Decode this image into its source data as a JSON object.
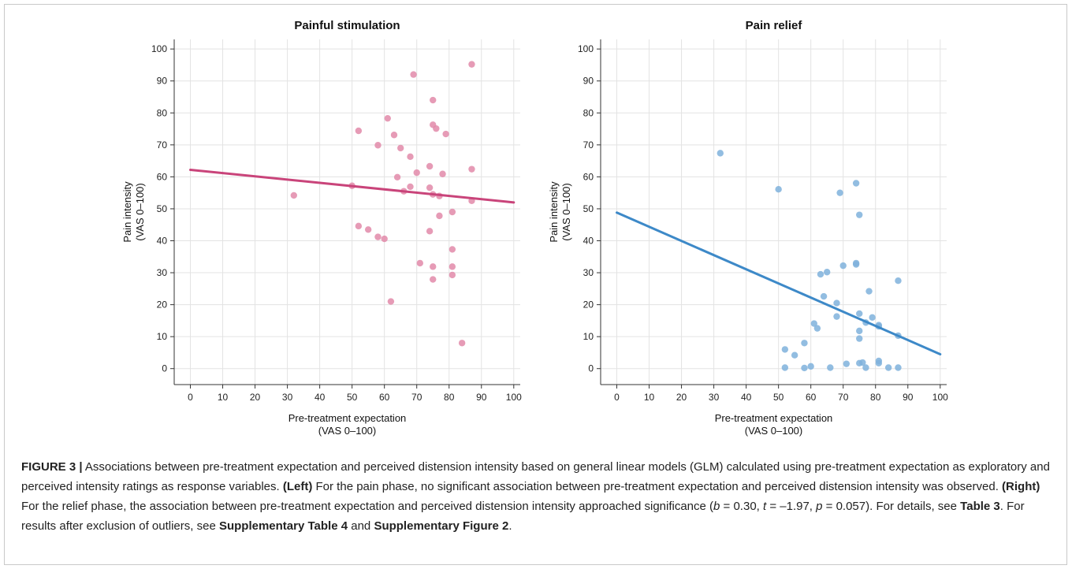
{
  "colors": {
    "pain": "#c9447a",
    "pain_points": "#e28aa9",
    "relief": "#3d89c8",
    "relief_points": "#7fb1dc"
  },
  "chart_data": [
    {
      "type": "scatter",
      "title": "Painful stimulation",
      "xlabel": [
        "Pre-treatment expectation",
        "(VAS 0–100)"
      ],
      "ylabel": [
        "Pain intensity",
        "(VAS 0–100)"
      ],
      "xlim": [
        -5,
        102
      ],
      "ylim": [
        -5,
        103
      ],
      "xticks": [
        0,
        10,
        20,
        30,
        40,
        50,
        60,
        70,
        80,
        90,
        100
      ],
      "yticks": [
        0,
        10,
        20,
        30,
        40,
        50,
        60,
        70,
        80,
        90,
        100
      ],
      "grid": true,
      "fit_line": {
        "x": [
          0,
          100
        ],
        "y": [
          62.2,
          52
        ]
      },
      "points": [
        [
          69,
          92
        ],
        [
          87,
          95.2
        ],
        [
          61,
          78.3
        ],
        [
          75,
          84
        ],
        [
          75,
          76.3
        ],
        [
          76,
          75.1
        ],
        [
          52,
          74.4
        ],
        [
          63,
          73.1
        ],
        [
          79,
          73.4
        ],
        [
          58,
          69.9
        ],
        [
          65,
          69
        ],
        [
          68,
          66.3
        ],
        [
          74,
          63.3
        ],
        [
          87,
          62.4
        ],
        [
          70,
          61.3
        ],
        [
          78,
          60.9
        ],
        [
          64,
          59.9
        ],
        [
          50,
          57.2
        ],
        [
          68,
          56.9
        ],
        [
          74,
          56.6
        ],
        [
          66,
          55.5
        ],
        [
          75,
          54.5
        ],
        [
          77,
          54
        ],
        [
          32,
          54.2
        ],
        [
          87,
          52.5
        ],
        [
          81,
          49
        ],
        [
          77,
          47.8
        ],
        [
          52,
          44.6
        ],
        [
          55,
          43.5
        ],
        [
          74,
          43
        ],
        [
          58,
          41.2
        ],
        [
          60,
          40.6
        ],
        [
          81,
          37.3
        ],
        [
          71,
          33
        ],
        [
          75,
          31.9
        ],
        [
          81,
          31.9
        ],
        [
          81,
          29.3
        ],
        [
          75,
          27.9
        ],
        [
          62,
          21
        ],
        [
          84,
          8
        ]
      ]
    },
    {
      "type": "scatter",
      "title": "Pain relief",
      "xlabel": [
        "Pre-treatment expectation",
        "(VAS 0–100)"
      ],
      "ylabel": [
        "Pain intensity",
        "(VAS 0–100)"
      ],
      "xlim": [
        -5,
        102
      ],
      "ylim": [
        -5,
        103
      ],
      "xticks": [
        0,
        10,
        20,
        30,
        40,
        50,
        60,
        70,
        80,
        90,
        100
      ],
      "yticks": [
        0,
        10,
        20,
        30,
        40,
        50,
        60,
        70,
        80,
        90,
        100
      ],
      "grid": true,
      "fit_line": {
        "x": [
          0,
          100
        ],
        "y": [
          48.8,
          4.5
        ]
      },
      "points": [
        [
          32,
          67.4
        ],
        [
          50,
          56.1
        ],
        [
          69,
          55
        ],
        [
          74,
          58
        ],
        [
          75,
          48.1
        ],
        [
          74,
          33
        ],
        [
          74,
          32.6
        ],
        [
          70,
          32.2
        ],
        [
          65,
          30.2
        ],
        [
          63,
          29.5
        ],
        [
          87,
          27.5
        ],
        [
          78,
          24.2
        ],
        [
          64,
          22.6
        ],
        [
          68,
          20.5
        ],
        [
          75,
          17.2
        ],
        [
          79,
          16
        ],
        [
          68,
          16.3
        ],
        [
          77,
          14.4
        ],
        [
          61,
          14.1
        ],
        [
          81,
          13.6
        ],
        [
          81,
          13.2
        ],
        [
          62,
          12.6
        ],
        [
          75,
          11.8
        ],
        [
          87,
          10.3
        ],
        [
          75,
          9.4
        ],
        [
          58,
          8
        ],
        [
          52,
          6
        ],
        [
          55,
          4.2
        ],
        [
          81,
          2.4
        ],
        [
          81,
          1.7
        ],
        [
          71,
          1.5
        ],
        [
          75,
          1.7
        ],
        [
          76,
          1.9
        ],
        [
          60,
          0.7
        ],
        [
          52,
          0.3
        ],
        [
          58,
          0.2
        ],
        [
          66,
          0.3
        ],
        [
          77,
          0.3
        ],
        [
          84,
          0.3
        ],
        [
          87,
          0.3
        ]
      ]
    }
  ],
  "caption": {
    "fig_label": "FIGURE 3 |",
    "p1": " Associations between pre-treatment expectation and perceived distension intensity based on general linear models (GLM) calculated using pre-treatment expectation as exploratory and perceived intensity ratings as response variables. ",
    "left_label": "(Left)",
    "p2": " For the pain phase, no significant association between pre-treatment expectation and perceived distension intensity was observed. ",
    "right_label": "(Right)",
    "p3": " For the relief phase, the association between pre-treatment expectation and perceived distension intensity approached significance (",
    "b_sym": "b",
    "p4": " = 0.30, ",
    "t_sym": "t",
    "p5": " = –1.97, ",
    "p_sym": "p",
    "p6": " = 0.057). For details, see ",
    "table_ref": "Table 3",
    "p7": ". For results after exclusion of outliers, see ",
    "supp_table_ref": "Supplementary Table 4",
    "p8": " and ",
    "supp_fig_ref": "Supplementary Figure 2",
    "p9": "."
  }
}
